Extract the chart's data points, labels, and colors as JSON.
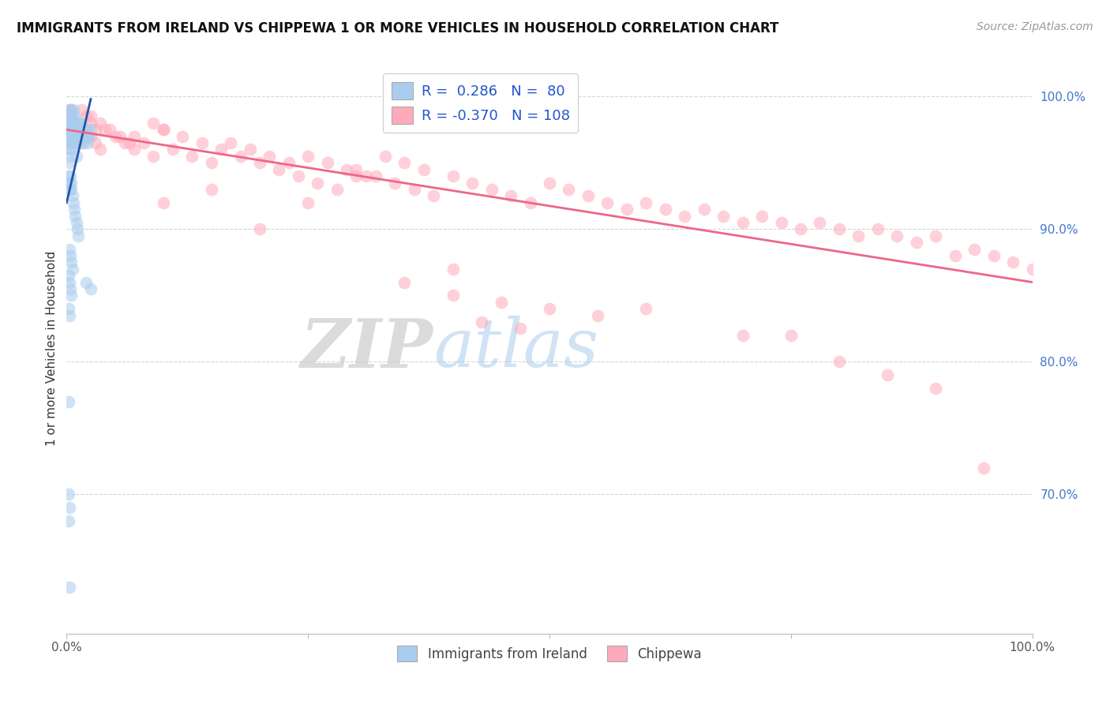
{
  "title": "IMMIGRANTS FROM IRELAND VS CHIPPEWA 1 OR MORE VEHICLES IN HOUSEHOLD CORRELATION CHART",
  "source": "Source: ZipAtlas.com",
  "ylabel": "1 or more Vehicles in Household",
  "legend_r_blue": "0.286",
  "legend_n_blue": "80",
  "legend_r_pink": "-0.370",
  "legend_n_pink": "108",
  "blue_fill": "#aaccee",
  "pink_fill": "#ffaabb",
  "blue_line_color": "#2255aa",
  "pink_line_color": "#ee6688",
  "background_color": "#ffffff",
  "grid_color": "#cccccc",
  "ytick_color": "#4477cc",
  "xtick_color": "#555555",
  "ylabel_color": "#333333",
  "title_color": "#111111",
  "source_color": "#999999",
  "xmin": 0.0,
  "xmax": 1.0,
  "ymin": 0.595,
  "ymax": 1.025,
  "ytick_vals": [
    0.7,
    0.8,
    0.9,
    1.0
  ],
  "ytick_labels": [
    "70.0%",
    "80.0%",
    "90.0%",
    "100.0%"
  ],
  "xtick_vals": [
    0.0,
    0.25,
    0.5,
    0.75,
    1.0
  ],
  "xtick_labels": [
    "0.0%",
    "",
    "",
    "",
    "100.0%"
  ],
  "marker_size": 130,
  "marker_alpha": 0.55,
  "blue_x": [
    0.001,
    0.001,
    0.002,
    0.002,
    0.002,
    0.003,
    0.003,
    0.003,
    0.003,
    0.003,
    0.004,
    0.004,
    0.004,
    0.004,
    0.005,
    0.005,
    0.005,
    0.005,
    0.006,
    0.006,
    0.006,
    0.007,
    0.007,
    0.007,
    0.008,
    0.008,
    0.008,
    0.009,
    0.009,
    0.01,
    0.01,
    0.01,
    0.011,
    0.011,
    0.012,
    0.012,
    0.013,
    0.013,
    0.014,
    0.015,
    0.015,
    0.016,
    0.017,
    0.018,
    0.019,
    0.02,
    0.021,
    0.022,
    0.023,
    0.025,
    0.002,
    0.003,
    0.003,
    0.004,
    0.005,
    0.005,
    0.006,
    0.007,
    0.008,
    0.009,
    0.01,
    0.011,
    0.012,
    0.003,
    0.004,
    0.005,
    0.006,
    0.002,
    0.003,
    0.004,
    0.005,
    0.002,
    0.003,
    0.02,
    0.025,
    0.002,
    0.002,
    0.003,
    0.002,
    0.003
  ],
  "blue_y": [
    0.98,
    0.97,
    0.985,
    0.975,
    0.965,
    0.99,
    0.98,
    0.97,
    0.96,
    0.95,
    0.985,
    0.975,
    0.965,
    0.955,
    0.99,
    0.98,
    0.97,
    0.96,
    0.985,
    0.975,
    0.965,
    0.99,
    0.98,
    0.97,
    0.985,
    0.975,
    0.965,
    0.98,
    0.97,
    0.975,
    0.965,
    0.955,
    0.98,
    0.97,
    0.975,
    0.965,
    0.98,
    0.97,
    0.975,
    0.98,
    0.97,
    0.975,
    0.97,
    0.965,
    0.97,
    0.975,
    0.97,
    0.965,
    0.97,
    0.975,
    0.94,
    0.935,
    0.93,
    0.94,
    0.935,
    0.93,
    0.925,
    0.92,
    0.915,
    0.91,
    0.905,
    0.9,
    0.895,
    0.885,
    0.88,
    0.875,
    0.87,
    0.865,
    0.86,
    0.855,
    0.85,
    0.84,
    0.835,
    0.86,
    0.855,
    0.77,
    0.7,
    0.69,
    0.68,
    0.63
  ],
  "pink_x": [
    0.003,
    0.005,
    0.008,
    0.01,
    0.013,
    0.015,
    0.02,
    0.025,
    0.03,
    0.035,
    0.02,
    0.025,
    0.03,
    0.04,
    0.05,
    0.06,
    0.07,
    0.08,
    0.09,
    0.1,
    0.015,
    0.025,
    0.035,
    0.045,
    0.055,
    0.065,
    0.11,
    0.13,
    0.15,
    0.17,
    0.19,
    0.21,
    0.23,
    0.25,
    0.27,
    0.29,
    0.31,
    0.33,
    0.35,
    0.37,
    0.1,
    0.12,
    0.14,
    0.16,
    0.18,
    0.2,
    0.22,
    0.24,
    0.26,
    0.28,
    0.3,
    0.32,
    0.34,
    0.36,
    0.38,
    0.4,
    0.42,
    0.44,
    0.46,
    0.48,
    0.5,
    0.52,
    0.54,
    0.56,
    0.58,
    0.6,
    0.62,
    0.64,
    0.66,
    0.68,
    0.7,
    0.72,
    0.74,
    0.76,
    0.78,
    0.8,
    0.82,
    0.84,
    0.86,
    0.88,
    0.9,
    0.92,
    0.94,
    0.96,
    0.98,
    1.0,
    0.4,
    0.45,
    0.5,
    0.55,
    0.43,
    0.47,
    0.35,
    0.75,
    0.85,
    0.07,
    0.09,
    0.4,
    0.6,
    0.8,
    0.1,
    0.2,
    0.3,
    0.7,
    0.9,
    0.15,
    0.25,
    0.95
  ],
  "pink_y": [
    0.99,
    0.985,
    0.98,
    0.975,
    0.97,
    0.965,
    0.975,
    0.97,
    0.965,
    0.96,
    0.985,
    0.98,
    0.975,
    0.975,
    0.97,
    0.965,
    0.97,
    0.965,
    0.98,
    0.975,
    0.99,
    0.985,
    0.98,
    0.975,
    0.97,
    0.965,
    0.96,
    0.955,
    0.95,
    0.965,
    0.96,
    0.955,
    0.95,
    0.955,
    0.95,
    0.945,
    0.94,
    0.955,
    0.95,
    0.945,
    0.975,
    0.97,
    0.965,
    0.96,
    0.955,
    0.95,
    0.945,
    0.94,
    0.935,
    0.93,
    0.945,
    0.94,
    0.935,
    0.93,
    0.925,
    0.94,
    0.935,
    0.93,
    0.925,
    0.92,
    0.935,
    0.93,
    0.925,
    0.92,
    0.915,
    0.92,
    0.915,
    0.91,
    0.915,
    0.91,
    0.905,
    0.91,
    0.905,
    0.9,
    0.905,
    0.9,
    0.895,
    0.9,
    0.895,
    0.89,
    0.895,
    0.88,
    0.885,
    0.88,
    0.875,
    0.87,
    0.85,
    0.845,
    0.84,
    0.835,
    0.83,
    0.825,
    0.86,
    0.82,
    0.79,
    0.96,
    0.955,
    0.87,
    0.84,
    0.8,
    0.92,
    0.9,
    0.94,
    0.82,
    0.78,
    0.93,
    0.92,
    0.72
  ],
  "blue_trendline_x": [
    0.0,
    0.025
  ],
  "blue_trendline_y_start": 0.92,
  "blue_trendline_y_end": 0.998,
  "pink_trendline_x": [
    0.0,
    1.0
  ],
  "pink_trendline_y_start": 0.975,
  "pink_trendline_y_end": 0.86
}
